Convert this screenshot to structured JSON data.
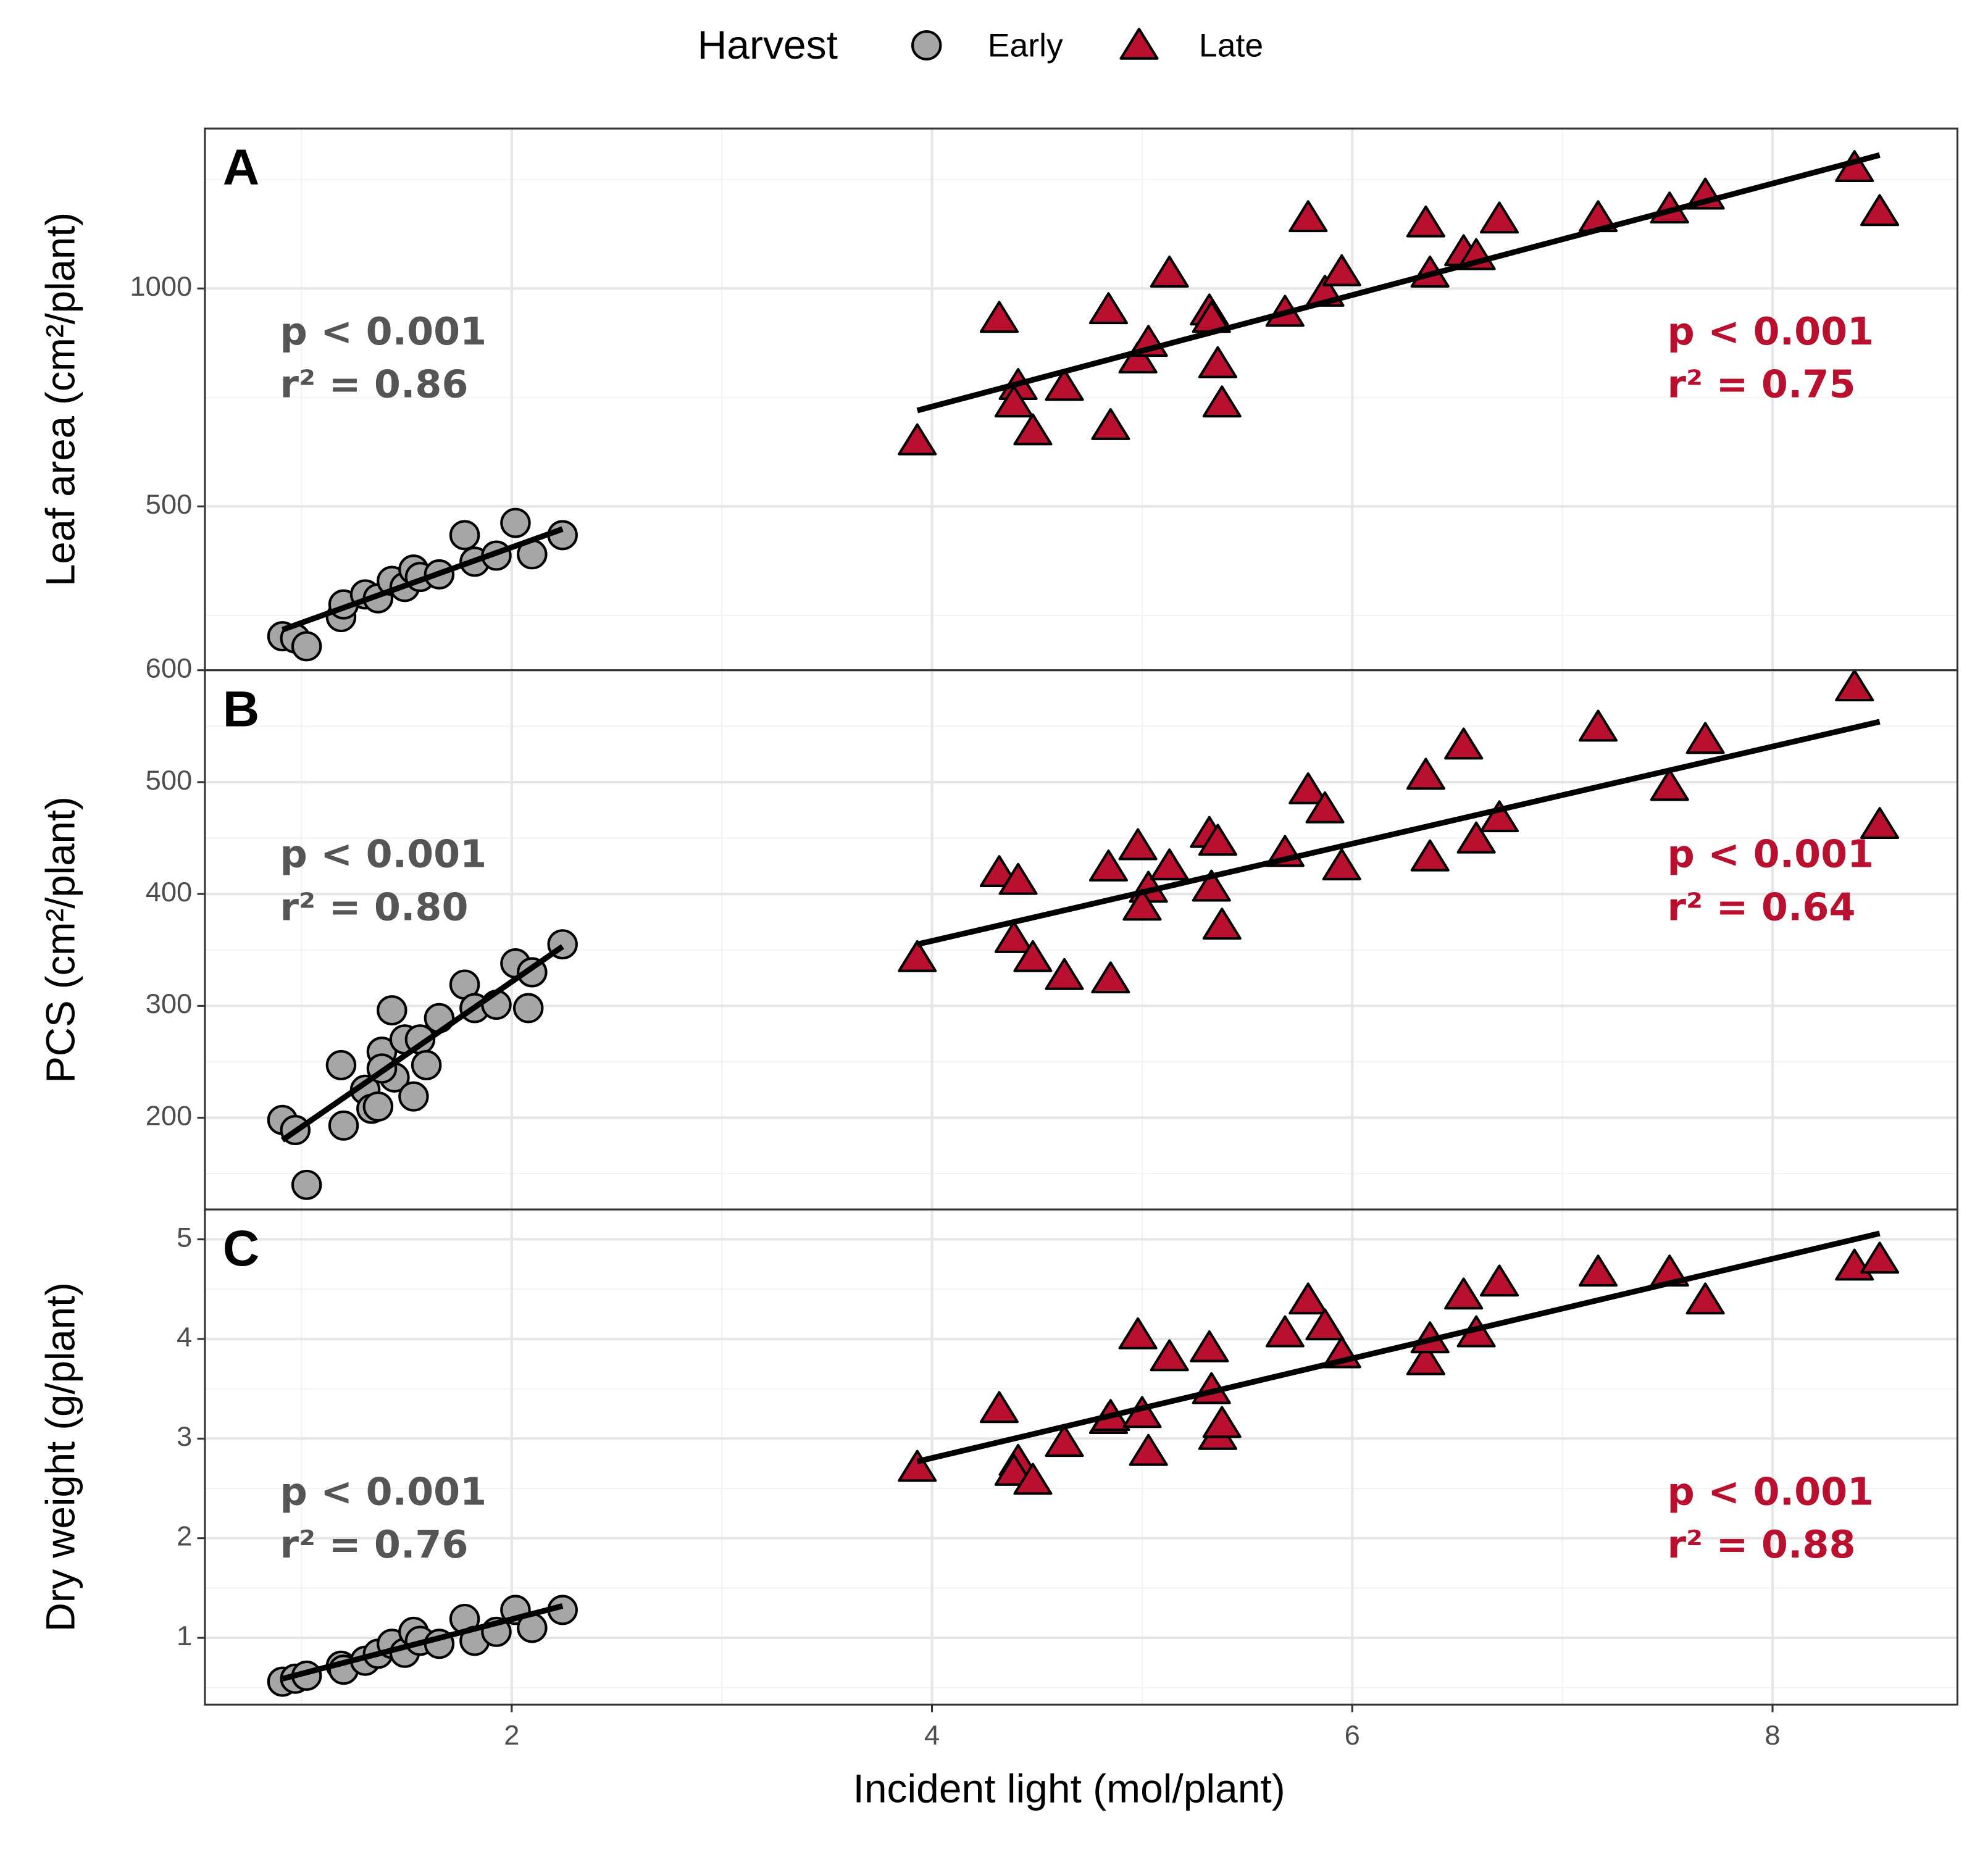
{
  "chart_data": {
    "type": "scatter",
    "legend": {
      "title": "Harvest",
      "position": "top"
    },
    "series_styles": [
      {
        "name": "Early",
        "color": "#a6a6a6",
        "marker": "circle",
        "annotation_color": "#555555"
      },
      {
        "name": "Late",
        "color": "#b8102e",
        "marker": "triangle",
        "annotation_color": "#b8102e"
      }
    ],
    "xlabel": "Incident light (mol/plant)",
    "xlim": [
      0.54,
      8.88
    ],
    "xticks": [
      2,
      4,
      6,
      8
    ],
    "grid": true,
    "panels": [
      {
        "label": "A",
        "ylabel": "Leaf area  (cm²/plant)",
        "ylim": [
          124,
          1367
        ],
        "yticks": [
          500,
          1000
        ],
        "annotations": [
          [
            "p < 0.001",
            "r² = 0.86"
          ],
          [
            "p < 0.001",
            "r² = 0.75"
          ]
        ],
        "series": [
          {
            "x": [
              0.909,
              0.97,
              1.024,
              1.188,
              1.2,
              1.303,
              1.364,
              1.43,
              1.491,
              1.533,
              1.564,
              1.655,
              1.776,
              1.824,
              1.927,
              2.018,
              2.097,
              2.242
            ],
            "values": [
              202,
              197,
              179,
              246,
              275,
              298,
              289,
              329,
              315,
              355,
              338,
              344,
              434,
              373,
              387,
              462,
              390,
              434
            ],
            "fit": {
              "x": [
                0.909,
                2.242
              ],
              "values": [
                217,
                448
              ]
            }
          },
          {
            "x": [
              3.93,
              4.32,
              4.41,
              4.39,
              4.48,
              4.63,
              4.84,
              4.85,
              4.98,
              5.03,
              5.13,
              5.32,
              5.33,
              5.36,
              5.38,
              5.68,
              5.79,
              5.87,
              5.95,
              6.35,
              6.37,
              6.53,
              6.59,
              6.7,
              7.17,
              7.51,
              7.68,
              8.39,
              8.51
            ],
            "values": [
              650,
              931,
              777,
              737,
              673,
              775,
              951,
              685,
              838,
              876,
              1035,
              948,
              931,
              827,
              737,
              945,
              1162,
              991,
              1038,
              1150,
              1035,
              1084,
              1075,
              1159,
              1162,
              1182,
              1214,
              1277,
              1176
            ],
            "fit": {
              "x": [
                3.93,
                8.51
              ],
              "values": [
                720,
                1306
              ]
            }
          }
        ]
      },
      {
        "label": "B",
        "ylabel": "PCS  (cm²/plant)",
        "ylim": [
          118,
          600
        ],
        "yticks": [
          200,
          300,
          400,
          500,
          600
        ],
        "annotations": [
          [
            "p < 0.001",
            "r² = 0.80"
          ],
          [
            "p < 0.001",
            "r² = 0.64"
          ]
        ],
        "series": [
          {
            "x": [
              0.909,
              0.97,
              1.024,
              1.188,
              1.2,
              1.303,
              1.333,
              1.364,
              1.382,
              1.43,
              1.442,
              1.382,
              1.491,
              1.533,
              1.564,
              1.594,
              1.655,
              1.776,
              1.824,
              1.927,
              2.018,
              2.097,
              2.079,
              2.242
            ],
            "values": [
              198,
              189,
              140,
              247,
              193,
              225,
              208,
              210,
              259,
              296,
              236,
              244,
              270,
              219,
              270,
              247,
              289,
              319,
              298,
              301,
              338,
              330,
              298,
              355
            ],
            "fit": {
              "x": [
                0.909,
                2.242
              ],
              "values": [
                180,
                353
              ]
            }
          },
          {
            "x": [
              3.93,
              4.32,
              4.41,
              4.39,
              4.48,
              4.63,
              4.84,
              4.85,
              4.98,
              5.03,
              5.0,
              5.13,
              5.32,
              5.33,
              5.36,
              5.38,
              5.68,
              5.79,
              5.87,
              5.95,
              6.35,
              6.37,
              6.53,
              6.59,
              6.7,
              7.17,
              7.51,
              7.68,
              8.39,
              8.51
            ],
            "values": [
              343,
              419,
              412,
              360,
              343,
              327,
              424,
              324,
              443,
              405,
              389,
              425,
              454,
              406,
              447,
              372,
              437,
              493,
              476,
              425,
              506,
              433,
              533,
              449,
              468,
              549,
              496,
              538,
              585,
              462
            ],
            "fit": {
              "x": [
                3.93,
                8.51
              ],
              "values": [
                355,
                554
              ]
            }
          }
        ]
      },
      {
        "label": "C",
        "ylabel": "Dry weight (g/plant)",
        "ylim": [
          0.33,
          5.3
        ],
        "yticks": [
          1,
          2,
          3,
          4,
          5
        ],
        "annotations": [
          [
            "p < 0.001",
            "r² = 0.76"
          ],
          [
            "p < 0.001",
            "r² = 0.88"
          ]
        ],
        "series": [
          {
            "x": [
              0.909,
              0.97,
              1.024,
              1.188,
              1.2,
              1.303,
              1.364,
              1.43,
              1.491,
              1.533,
              1.564,
              1.655,
              1.776,
              1.824,
              1.927,
              2.018,
              2.097,
              2.242
            ],
            "values": [
              0.56,
              0.59,
              0.62,
              0.72,
              0.68,
              0.77,
              0.84,
              0.94,
              0.85,
              1.06,
              0.97,
              0.94,
              1.19,
              0.97,
              1.06,
              1.28,
              1.1,
              1.28
            ],
            "fit": {
              "x": [
                0.909,
                2.242
              ],
              "values": [
                0.59,
                1.32
              ]
            }
          },
          {
            "x": [
              3.93,
              4.32,
              4.41,
              4.39,
              4.48,
              4.63,
              4.84,
              4.85,
              4.98,
              5.03,
              5.0,
              5.13,
              5.32,
              5.33,
              5.36,
              5.38,
              5.68,
              5.79,
              5.87,
              5.95,
              6.35,
              6.37,
              6.53,
              6.59,
              6.7,
              7.17,
              7.51,
              7.68,
              8.39,
              8.51
            ],
            "values": [
              2.71,
              3.3,
              2.77,
              2.67,
              2.58,
              2.96,
              3.19,
              3.22,
              4.04,
              2.87,
              3.25,
              3.82,
              3.91,
              3.49,
              3.03,
              3.15,
              4.06,
              4.39,
              4.13,
              3.85,
              3.78,
              4.0,
              4.44,
              4.06,
              4.57,
              4.67,
              4.67,
              4.39,
              4.73,
              4.8
            ],
            "fit": {
              "x": [
                3.93,
                8.51
              ],
              "values": [
                2.77,
                5.06
              ]
            }
          }
        ]
      }
    ]
  }
}
